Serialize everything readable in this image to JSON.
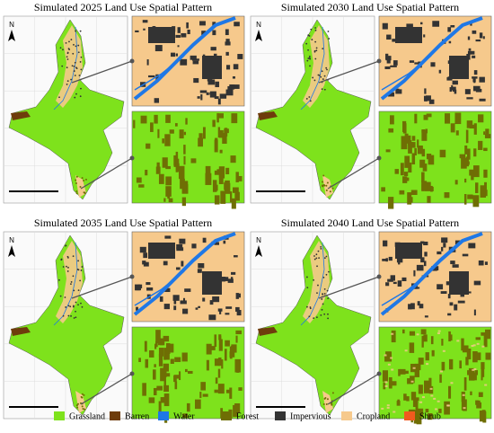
{
  "panels": [
    {
      "title": "Simulated 2025 Land Use Spatial Pattern",
      "north": "N"
    },
    {
      "title": "Simulated 2030 Land Use Spatial Pattern",
      "north": "N"
    },
    {
      "title": "Simulated 2035 Land Use Spatial Pattern",
      "north": "N"
    },
    {
      "title": "Simulated 2040 Land Use Spatial Pattern",
      "north": "N"
    }
  ],
  "legend": [
    {
      "label": "Grassland",
      "color": "#7ee21c"
    },
    {
      "label": "Barren",
      "color": "#6e3c0c"
    },
    {
      "label": "Water",
      "color": "#1f78e6"
    },
    {
      "label": "Forest",
      "color": "#6f6e04"
    },
    {
      "label": "Impervious",
      "color": "#333333"
    },
    {
      "label": "Cropland",
      "color": "#f6c98c"
    },
    {
      "label": "Shrub",
      "color": "#f05a1e"
    }
  ]
}
